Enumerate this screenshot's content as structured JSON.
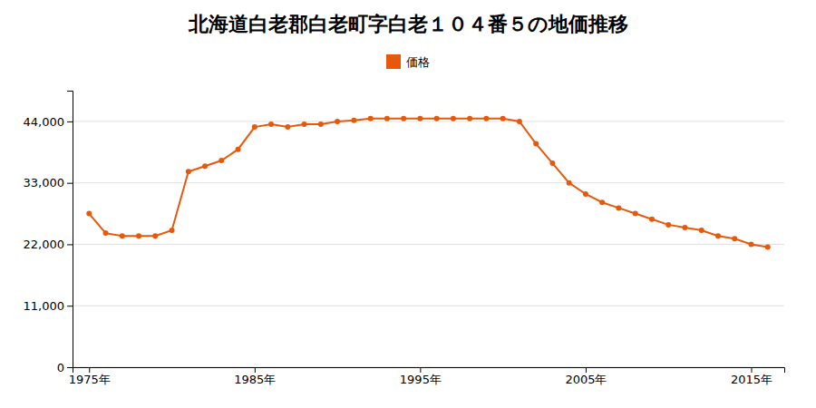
{
  "chart_data": {
    "type": "line",
    "title": "北海道白老郡白老町字白老１０４番５の地価推移",
    "x": [
      1975,
      1976,
      1977,
      1978,
      1979,
      1980,
      1981,
      1982,
      1983,
      1984,
      1985,
      1986,
      1987,
      1988,
      1989,
      1990,
      1991,
      1992,
      1993,
      1994,
      1995,
      1996,
      1997,
      1998,
      1999,
      2000,
      2001,
      2002,
      2003,
      2004,
      2005,
      2006,
      2007,
      2008,
      2009,
      2010,
      2011,
      2012,
      2013,
      2014,
      2015,
      2016
    ],
    "series": [
      {
        "name": "価格",
        "color": "#e8580a",
        "marker": "circle",
        "line_style": "solid",
        "values": [
          27500,
          24000,
          23500,
          23500,
          23500,
          24500,
          35000,
          36000,
          37000,
          39000,
          43000,
          43500,
          43000,
          43500,
          43500,
          44000,
          44200,
          44500,
          44500,
          44500,
          44500,
          44500,
          44500,
          44500,
          44500,
          44500,
          44000,
          40000,
          36500,
          33000,
          31000,
          29500,
          28500,
          27500,
          26500,
          25500,
          25000,
          24500,
          23500,
          23000,
          22000,
          21500
        ]
      }
    ],
    "xlim": [
      1974,
      2017
    ],
    "xticks": [
      {
        "value": 1975,
        "label": "1975年"
      },
      {
        "value": 1985,
        "label": "1985年"
      },
      {
        "value": 1995,
        "label": "1995年"
      },
      {
        "value": 2005,
        "label": "2005年"
      },
      {
        "value": 2015,
        "label": "2015年"
      }
    ],
    "ylim": [
      0,
      49500
    ],
    "yticks": [
      0,
      {
        "value": 11000,
        "label": "11,000"
      },
      {
        "value": 22000,
        "label": "22,000"
      },
      {
        "value": 33000,
        "label": "33,000"
      },
      {
        "value": 44000,
        "label": "44,000"
      }
    ],
    "grid": true,
    "legend": "top"
  }
}
